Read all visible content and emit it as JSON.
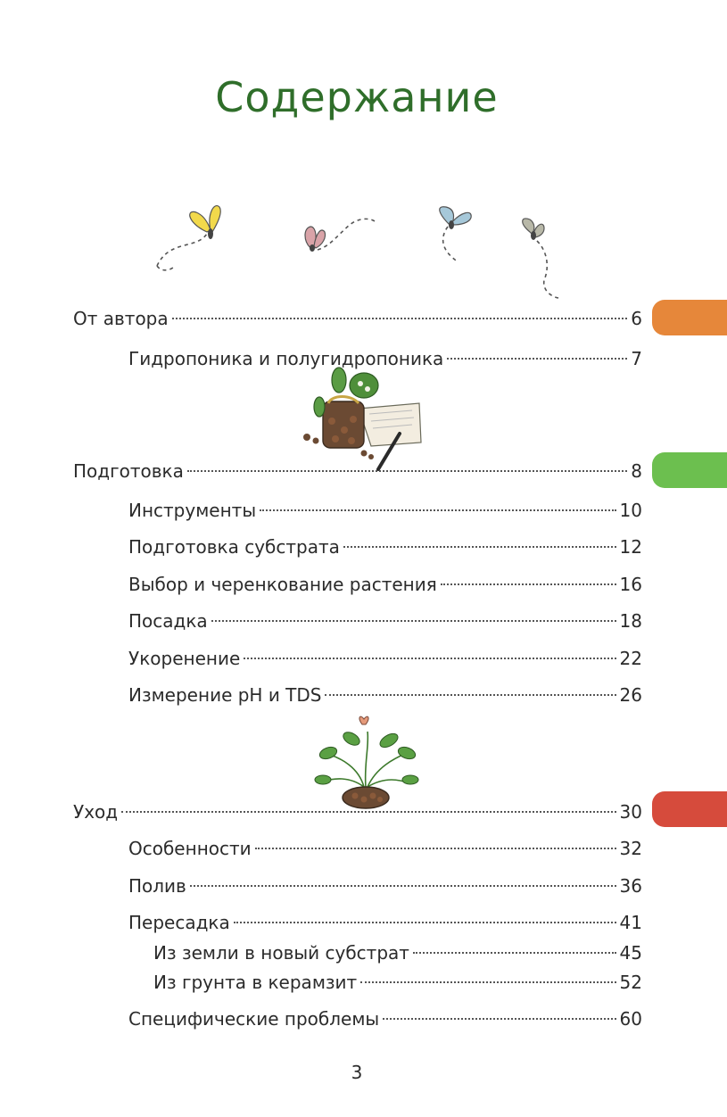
{
  "page": {
    "title": "Содержание",
    "number": "3"
  },
  "tabs": {
    "colors": [
      "#e6873a",
      "#6cbf4f",
      "#d64b3c"
    ]
  },
  "toc": [
    {
      "label": "От автора",
      "page": "6"
    },
    {
      "label": "Гидропоника и полугидропоника",
      "page": "7"
    },
    {
      "label": "Подготовка",
      "page": "8"
    },
    {
      "label": "Инструменты",
      "page": "10"
    },
    {
      "label": "Подготовка субстрата",
      "page": "12"
    },
    {
      "label": "Выбор и черенкование растения",
      "page": "16"
    },
    {
      "label": "Посадка",
      "page": "18"
    },
    {
      "label": "Укоренение",
      "page": "22"
    },
    {
      "label": "Измерение pH и TDS",
      "page": "26"
    },
    {
      "label": "Уход",
      "page": "30"
    },
    {
      "label": "Особенности",
      "page": "32"
    },
    {
      "label": "Полив",
      "page": "36"
    },
    {
      "label": "Пересадка",
      "page": "41"
    },
    {
      "label": "Из земли в новый субстрат",
      "page": "45"
    },
    {
      "label": "Из грунта в керамзит",
      "page": "52"
    },
    {
      "label": "Специфические проблемы",
      "page": "60"
    }
  ],
  "illustrations": [
    "butterflies-illustration",
    "jar-plant-notebook-illustration",
    "potted-plant-illustration"
  ]
}
